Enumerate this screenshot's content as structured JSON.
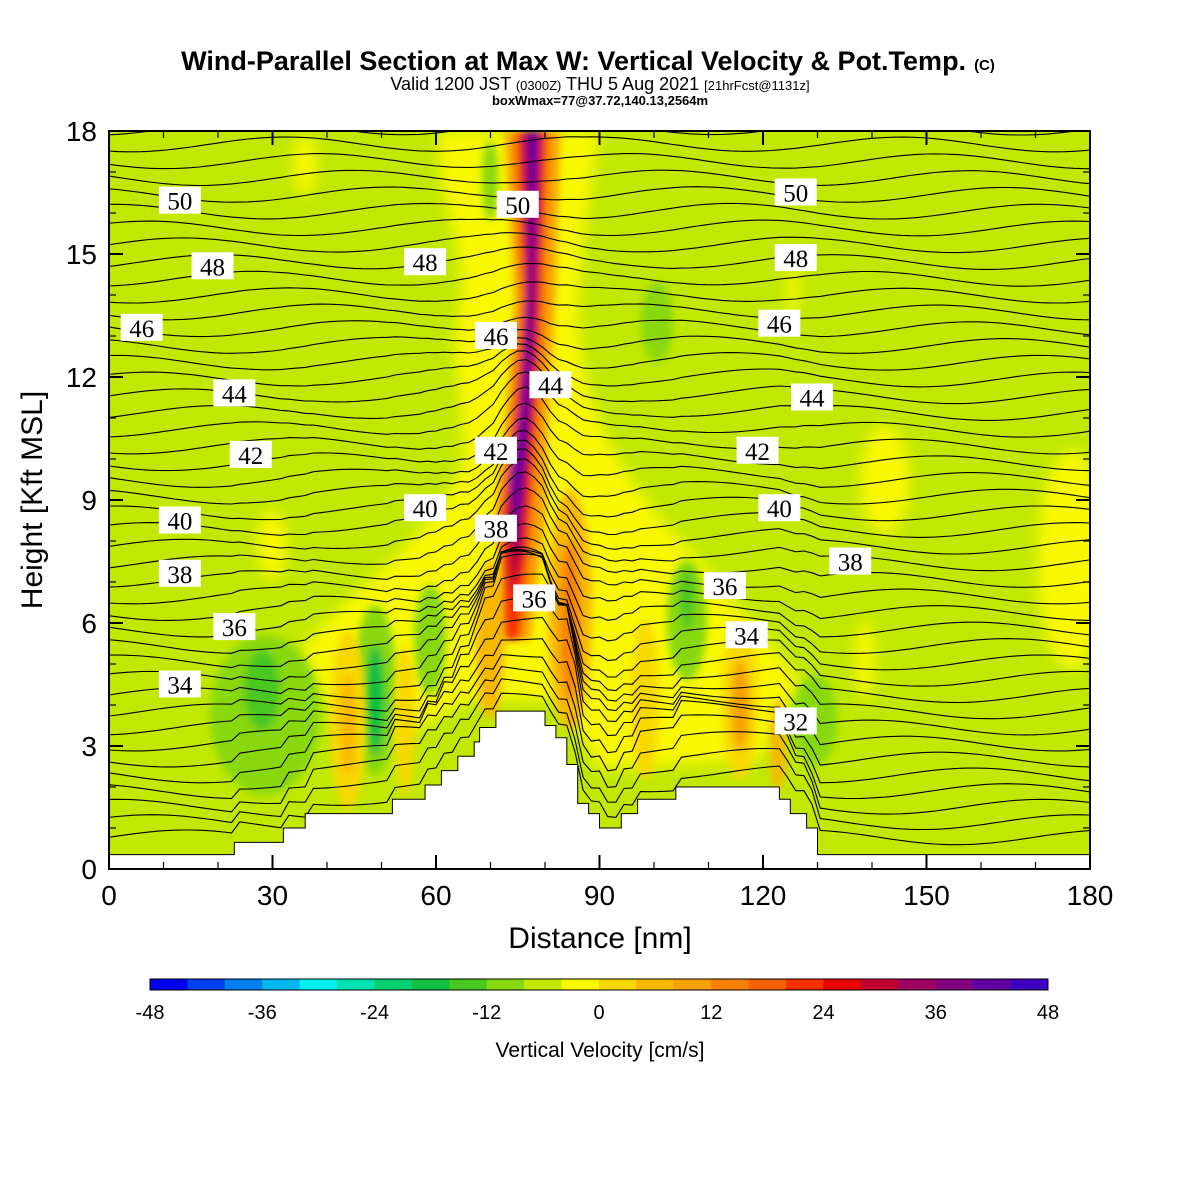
{
  "chart_data": {
    "type": "heatmap",
    "title": "Wind-Parallel Section at Max W: Vertical Velocity & Pot.Temp.",
    "title_mark": "(C)",
    "subtitle_pre": "Valid 1200 JST",
    "subtitle_utc": "(0300Z)",
    "subtitle_mid": "THU 5 Aug 2021",
    "subtitle_fcst": "[21hrFcst@1131z]",
    "subtitle2": "boxWmax=77@37.72,140.13,2564m",
    "xlabel": "Distance [nm]",
    "ylabel": "Height [Kft MSL]",
    "xlim": [
      0,
      180
    ],
    "ylim": [
      0,
      18
    ],
    "xticks": [
      0,
      30,
      60,
      90,
      120,
      150,
      180
    ],
    "yticks": [
      0,
      3,
      6,
      9,
      12,
      15,
      18
    ],
    "colorbar": {
      "label": "Vertical Velocity [cm/s]",
      "min": -48,
      "max": 48,
      "step": 4,
      "tick_values": [
        -48,
        -36,
        -24,
        -12,
        0,
        12,
        24,
        36,
        48
      ],
      "colors": [
        "#0000f0",
        "#0040f0",
        "#0080f0",
        "#00b8f0",
        "#00f0f0",
        "#00e0b0",
        "#00d070",
        "#10c040",
        "#48c820",
        "#88d810",
        "#c0e800",
        "#f8f800",
        "#f8d800",
        "#f8b800",
        "#f8a000",
        "#f88000",
        "#f86000",
        "#f83000",
        "#e80000",
        "#c00030",
        "#a00060",
        "#800080",
        "#6000a0",
        "#4000c0"
      ],
      "color_order": "from the lowest bin (-48) to the highest (48)"
    },
    "theta_contour_labels": [
      {
        "text": "50",
        "x": 13,
        "y": 16.3
      },
      {
        "text": "50",
        "x": 75,
        "y": 16.2
      },
      {
        "text": "50",
        "x": 126,
        "y": 16.5
      },
      {
        "text": "48",
        "x": 19,
        "y": 14.7
      },
      {
        "text": "48",
        "x": 58,
        "y": 14.8
      },
      {
        "text": "48",
        "x": 126,
        "y": 14.9
      },
      {
        "text": "46",
        "x": 6,
        "y": 13.2
      },
      {
        "text": "46",
        "x": 71,
        "y": 13.0
      },
      {
        "text": "46",
        "x": 123,
        "y": 13.3
      },
      {
        "text": "44",
        "x": 23,
        "y": 11.6
      },
      {
        "text": "44",
        "x": 81,
        "y": 11.8
      },
      {
        "text": "44",
        "x": 129,
        "y": 11.5
      },
      {
        "text": "42",
        "x": 26,
        "y": 10.1
      },
      {
        "text": "42",
        "x": 71,
        "y": 10.2
      },
      {
        "text": "42",
        "x": 119,
        "y": 10.2
      },
      {
        "text": "40",
        "x": 13,
        "y": 8.5
      },
      {
        "text": "40",
        "x": 58,
        "y": 8.8
      },
      {
        "text": "40",
        "x": 123,
        "y": 8.8
      },
      {
        "text": "38",
        "x": 13,
        "y": 7.2
      },
      {
        "text": "38",
        "x": 71,
        "y": 8.3
      },
      {
        "text": "38",
        "x": 136,
        "y": 7.5
      },
      {
        "text": "36",
        "x": 23,
        "y": 5.9
      },
      {
        "text": "36",
        "x": 78,
        "y": 6.6
      },
      {
        "text": "36",
        "x": 113,
        "y": 6.9
      },
      {
        "text": "34",
        "x": 13,
        "y": 4.5
      },
      {
        "text": "34",
        "x": 117,
        "y": 5.7
      },
      {
        "text": "32",
        "x": 126,
        "y": 3.6
      }
    ],
    "terrain_profile": {
      "x": [
        0,
        23,
        23,
        26,
        26,
        32,
        32,
        36,
        36,
        52,
        52,
        58,
        58,
        61,
        61,
        64,
        64,
        67,
        67,
        68,
        68,
        71,
        71,
        73,
        73,
        80,
        80,
        82,
        82,
        84,
        84,
        86,
        86,
        88,
        88,
        90,
        90,
        94,
        94,
        97,
        97,
        104,
        104,
        107,
        107,
        123,
        123,
        125,
        125,
        128,
        128,
        130,
        130,
        180
      ],
      "y": [
        0.35,
        0.35,
        0.65,
        0.65,
        0.65,
        0.65,
        1.0,
        1.0,
        1.35,
        1.35,
        1.7,
        1.7,
        2.05,
        2.05,
        2.4,
        2.4,
        2.75,
        2.75,
        3.1,
        3.1,
        3.45,
        3.45,
        3.85,
        3.85,
        3.85,
        3.85,
        3.5,
        3.5,
        3.2,
        3.2,
        2.55,
        2.55,
        1.6,
        1.6,
        1.35,
        1.35,
        1.0,
        1.0,
        1.35,
        1.35,
        1.7,
        1.7,
        2.0,
        2.0,
        2.0,
        2.0,
        1.7,
        1.7,
        1.35,
        1.35,
        1.0,
        1.0,
        0.35,
        0.35
      ]
    }
  }
}
